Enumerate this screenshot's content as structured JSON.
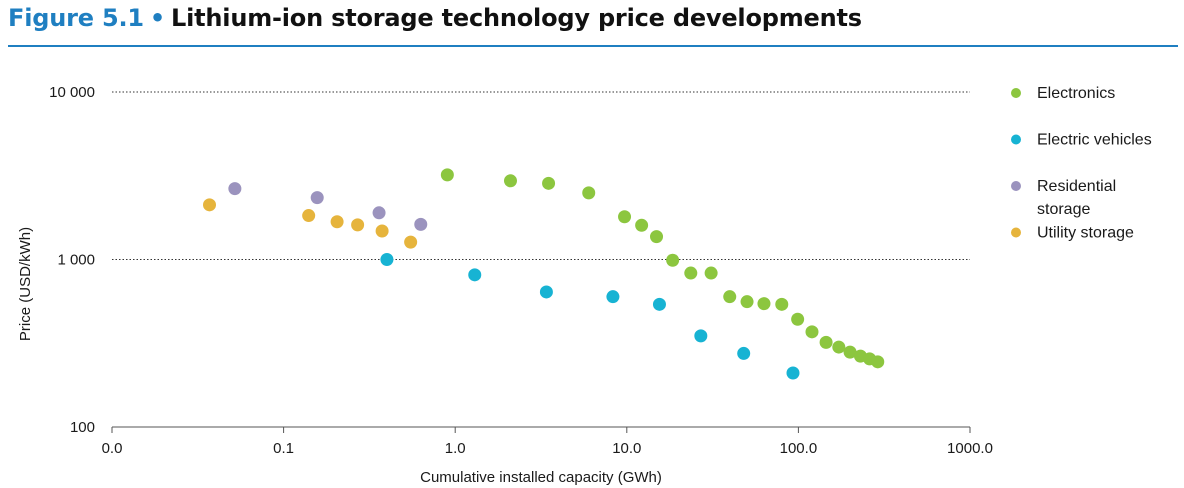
{
  "figure": {
    "number": "Figure 5.1",
    "bullet": "•",
    "title": "Lithium-ion storage technology price developments"
  },
  "chart_data": {
    "type": "scatter",
    "title": "Lithium-ion storage technology price developments",
    "xlabel": "Cumulative installed capacity (GWh)",
    "ylabel": "Price (USD/kWh)",
    "xscale": "log",
    "yscale": "log",
    "xlim": [
      0.01,
      1000
    ],
    "ylim": [
      100,
      10000
    ],
    "xticks": [
      {
        "value": 0.01,
        "label": "0.0"
      },
      {
        "value": 0.1,
        "label": "0.1"
      },
      {
        "value": 1,
        "label": "1.0"
      },
      {
        "value": 10,
        "label": "10.0"
      },
      {
        "value": 100,
        "label": "100.0"
      },
      {
        "value": 1000,
        "label": "1000.0"
      }
    ],
    "yticks": [
      {
        "value": 100,
        "label": "100"
      },
      {
        "value": 1000,
        "label": "1 000"
      },
      {
        "value": 10000,
        "label": "10 000"
      }
    ],
    "gridlines_y": [
      1000,
      10000
    ],
    "legend_position": "right",
    "series": [
      {
        "name": "Electronics",
        "legend_lines": [
          "Electronics"
        ],
        "color": "#8cc63f",
        "points": [
          [
            0.9,
            3200
          ],
          [
            2.1,
            2950
          ],
          [
            3.5,
            2850
          ],
          [
            6.0,
            2500
          ],
          [
            9.7,
            1800
          ],
          [
            12.2,
            1600
          ],
          [
            14.9,
            1370
          ],
          [
            18.5,
            990
          ],
          [
            23.6,
            830
          ],
          [
            31.0,
            830
          ],
          [
            39.8,
            600
          ],
          [
            50.2,
            560
          ],
          [
            63.0,
            545
          ],
          [
            80.0,
            540
          ],
          [
            99.0,
            440
          ],
          [
            120.0,
            370
          ],
          [
            145.0,
            320
          ],
          [
            172.0,
            300
          ],
          [
            200.0,
            280
          ],
          [
            230.0,
            265
          ],
          [
            260.0,
            255
          ],
          [
            290.0,
            245
          ]
        ]
      },
      {
        "name": "Electric vehicles",
        "legend_lines": [
          "Electric vehicles"
        ],
        "color": "#17b3d3",
        "points": [
          [
            0.4,
            1000
          ],
          [
            1.3,
            810
          ],
          [
            3.4,
            640
          ],
          [
            8.3,
            600
          ],
          [
            15.5,
            540
          ],
          [
            27.0,
            350
          ],
          [
            48.0,
            275
          ],
          [
            93.0,
            210
          ]
        ]
      },
      {
        "name": "Residential storage",
        "legend_lines": [
          "Residential",
          "storage"
        ],
        "color": "#9b93be",
        "points": [
          [
            0.052,
            2650
          ],
          [
            0.157,
            2340
          ],
          [
            0.36,
            1900
          ],
          [
            0.63,
            1620
          ]
        ]
      },
      {
        "name": "Utility storage",
        "legend_lines": [
          "Utility storage"
        ],
        "color": "#e6b43c",
        "points": [
          [
            0.037,
            2120
          ],
          [
            0.14,
            1830
          ],
          [
            0.205,
            1680
          ],
          [
            0.27,
            1610
          ],
          [
            0.375,
            1480
          ],
          [
            0.55,
            1270
          ]
        ]
      }
    ]
  }
}
